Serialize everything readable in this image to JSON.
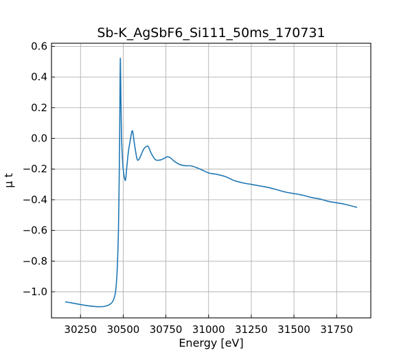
{
  "chart_data": {
    "type": "line",
    "title": "Sb-K_AgSbF6_Si111_50ms_170731",
    "xlabel": "Energy [eV]",
    "ylabel": "μ t",
    "xlim": [
      30080,
      31950
    ],
    "ylim": [
      -1.17,
      0.62
    ],
    "xticks": [
      30250,
      30500,
      30750,
      31000,
      31250,
      31500,
      31750
    ],
    "yticks": [
      -1.0,
      -0.8,
      -0.6,
      -0.4,
      -0.2,
      0.0,
      0.2,
      0.4,
      0.6
    ],
    "xtick_labels": [
      "30250",
      "30500",
      "30750",
      "31000",
      "31250",
      "31500",
      "31750"
    ],
    "ytick_labels": [
      "−1.0",
      "−0.8",
      "−0.6",
      "−0.4",
      "−0.2",
      "0.0",
      "0.2",
      "0.4",
      "0.6"
    ],
    "grid": true,
    "series": [
      {
        "color": "#1f77b4",
        "x": [
          30160,
          30200,
          30250,
          30300,
          30350,
          30390,
          30420,
          30440,
          30455,
          30465,
          30472,
          30476,
          30479,
          30481,
          30483,
          30485,
          30488,
          30492,
          30500,
          30510,
          30515,
          30520,
          30530,
          30540,
          30548,
          30553,
          30558,
          30565,
          30580,
          30590,
          30600,
          30620,
          30640,
          30650,
          30665,
          30690,
          30720,
          30740,
          30760,
          30780,
          30800,
          30830,
          30860,
          30900,
          30950,
          31000,
          31050,
          31100,
          31150,
          31200,
          31250,
          31300,
          31350,
          31400,
          31450,
          31500,
          31550,
          31600,
          31650,
          31700,
          31750,
          31800,
          31870
        ],
        "y": [
          -1.065,
          -1.073,
          -1.083,
          -1.092,
          -1.097,
          -1.095,
          -1.083,
          -1.06,
          -1.0,
          -0.85,
          -0.6,
          -0.3,
          0.0,
          0.3,
          0.52,
          0.4,
          0.15,
          -0.05,
          -0.2,
          -0.27,
          -0.26,
          -0.2,
          -0.09,
          -0.02,
          0.03,
          0.05,
          0.03,
          -0.03,
          -0.13,
          -0.14,
          -0.12,
          -0.07,
          -0.05,
          -0.06,
          -0.1,
          -0.14,
          -0.14,
          -0.13,
          -0.12,
          -0.13,
          -0.15,
          -0.17,
          -0.178,
          -0.18,
          -0.2,
          -0.225,
          -0.235,
          -0.25,
          -0.275,
          -0.29,
          -0.3,
          -0.31,
          -0.32,
          -0.335,
          -0.35,
          -0.36,
          -0.37,
          -0.385,
          -0.395,
          -0.41,
          -0.42,
          -0.43,
          -0.45
        ]
      }
    ]
  }
}
